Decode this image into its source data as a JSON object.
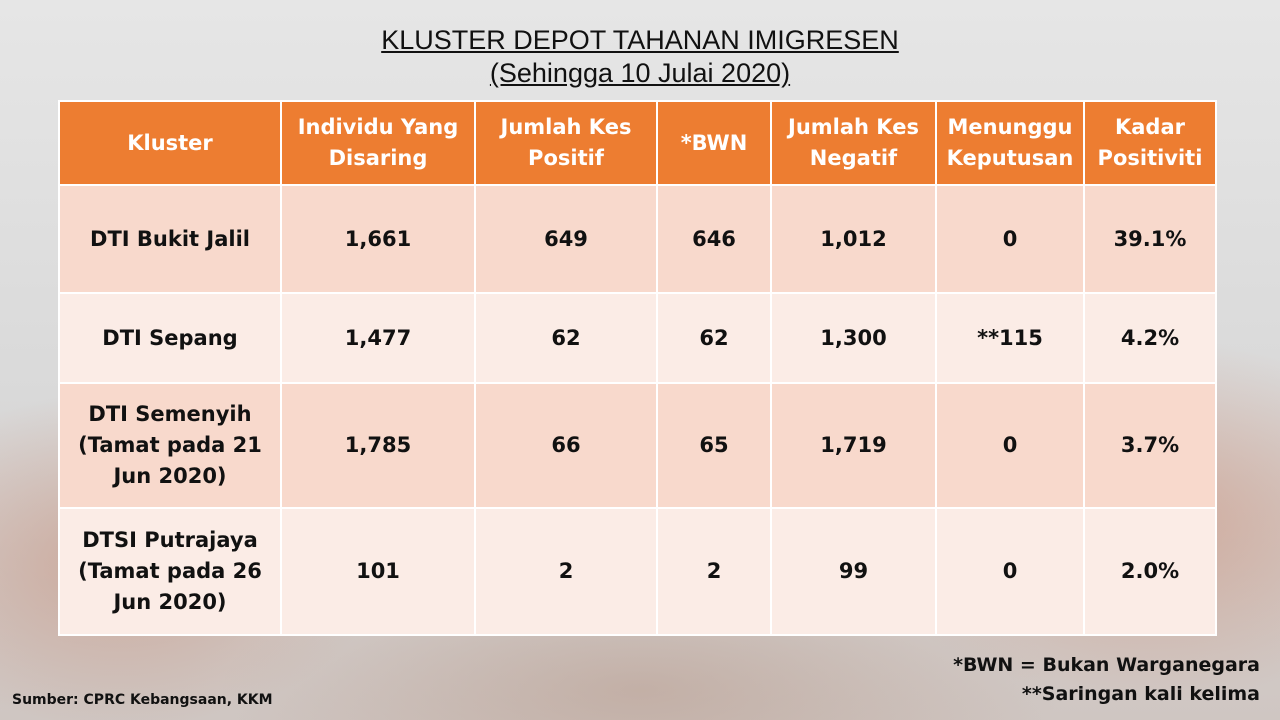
{
  "title": "KLUSTER DEPOT TAHANAN IMIGRESEN",
  "subtitle": "(Sehingga 10 Julai 2020)",
  "table": {
    "headers": [
      "Kluster",
      "Individu Yang Disaring",
      "Jumlah Kes Positif",
      "*BWN",
      "Jumlah Kes Negatif",
      "Menunggu Keputusan",
      "Kadar Positiviti"
    ],
    "rows": [
      [
        "DTI Bukit Jalil",
        "1,661",
        "649",
        "646",
        "1,012",
        "0",
        "39.1%"
      ],
      [
        "DTI Sepang",
        "1,477",
        "62",
        "62",
        "1,300",
        "**115",
        "4.2%"
      ],
      [
        "DTI Semenyih (Tamat pada 21 Jun 2020)",
        "1,785",
        "66",
        "65",
        "1,719",
        "0",
        "3.7%"
      ],
      [
        "DTSI Putrajaya (Tamat pada 26 Jun 2020)",
        "101",
        "2",
        "2",
        "99",
        "0",
        "2.0%"
      ]
    ]
  },
  "notes": {
    "bwn": "*BWN = Bukan Warganegara",
    "saringan": "**Saringan kali kelima"
  },
  "source": "Sumber: CPRC Kebangsaan, KKM",
  "colors": {
    "header_bg": "#ed7d31",
    "row_odd": "#f8d9cc",
    "row_even": "#fbece6"
  }
}
